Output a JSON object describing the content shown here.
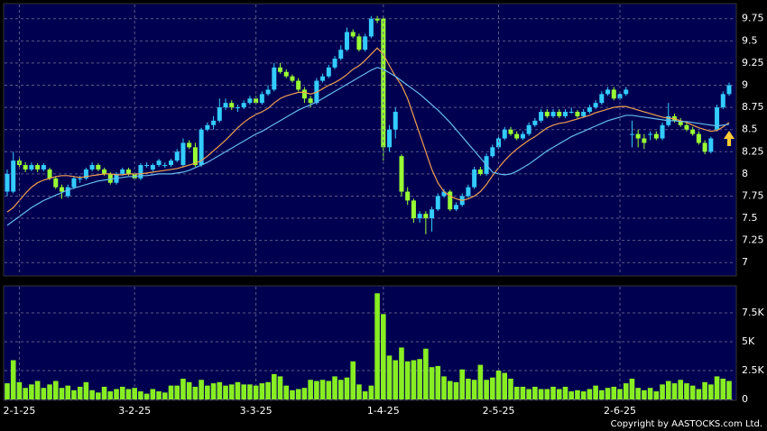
{
  "chart_data": [
    {
      "type": "candlestick",
      "up_color": "#33ccff",
      "down_color": "#99ff33",
      "grid": true,
      "ylim": [
        6.86,
        9.91
      ],
      "yticks": [
        7,
        7.25,
        7.5,
        7.75,
        8,
        8.25,
        8.5,
        8.75,
        9,
        9.25,
        9.5,
        9.75
      ],
      "candles": [
        [
          7.8,
          8.05,
          7.75,
          8.0
        ],
        [
          7.8,
          8.25,
          7.78,
          8.15
        ],
        [
          8.15,
          8.2,
          8.08,
          8.1
        ],
        [
          8.1,
          8.13,
          8.02,
          8.05
        ],
        [
          8.05,
          8.13,
          8.03,
          8.1
        ],
        [
          8.1,
          8.12,
          8.02,
          8.05
        ],
        [
          8.05,
          8.12,
          8.03,
          8.1
        ],
        [
          8.05,
          8.07,
          7.93,
          7.95
        ],
        [
          7.95,
          7.97,
          7.83,
          7.85
        ],
        [
          7.85,
          7.88,
          7.72,
          7.8
        ],
        [
          7.75,
          7.88,
          7.73,
          7.85
        ],
        [
          7.85,
          7.97,
          7.83,
          7.95
        ],
        [
          7.95,
          7.98,
          7.9,
          7.95
        ],
        [
          7.95,
          8.07,
          7.93,
          8.05
        ],
        [
          8.05,
          8.13,
          8.03,
          8.1
        ],
        [
          8.1,
          8.12,
          8.03,
          8.05
        ],
        [
          8.05,
          8.07,
          7.98,
          8.0
        ],
        [
          8.0,
          8.02,
          7.88,
          7.9
        ],
        [
          7.9,
          8.02,
          7.88,
          8.0
        ],
        [
          8.0,
          8.07,
          7.98,
          8.05
        ],
        [
          8.05,
          8.07,
          7.98,
          8.0
        ],
        [
          8.0,
          8.02,
          7.93,
          7.95
        ],
        [
          7.95,
          8.12,
          7.93,
          8.1
        ],
        [
          8.1,
          8.13,
          8.07,
          8.1
        ],
        [
          8.05,
          8.12,
          8.03,
          8.1
        ],
        [
          8.1,
          8.17,
          8.08,
          8.15
        ],
        [
          8.1,
          8.13,
          8.07,
          8.1
        ],
        [
          8.1,
          8.17,
          8.08,
          8.15
        ],
        [
          8.15,
          8.28,
          8.13,
          8.25
        ],
        [
          8.1,
          8.4,
          8.08,
          8.35
        ],
        [
          8.35,
          8.38,
          8.28,
          8.3
        ],
        [
          8.3,
          8.35,
          8.08,
          8.1
        ],
        [
          8.1,
          8.52,
          8.08,
          8.5
        ],
        [
          8.5,
          8.58,
          8.48,
          8.55
        ],
        [
          8.55,
          8.65,
          8.5,
          8.6
        ],
        [
          8.6,
          8.85,
          8.58,
          8.75
        ],
        [
          8.75,
          8.85,
          8.72,
          8.8
        ],
        [
          8.8,
          8.83,
          8.72,
          8.75
        ],
        [
          8.75,
          8.78,
          8.7,
          8.75
        ],
        [
          8.75,
          8.83,
          8.73,
          8.8
        ],
        [
          8.8,
          8.88,
          8.78,
          8.85
        ],
        [
          8.85,
          8.88,
          8.78,
          8.8
        ],
        [
          8.8,
          8.93,
          8.78,
          8.9
        ],
        [
          8.9,
          9.0,
          8.88,
          8.95
        ],
        [
          8.95,
          9.25,
          8.93,
          9.2
        ],
        [
          9.2,
          9.25,
          9.13,
          9.15
        ],
        [
          9.15,
          9.18,
          9.08,
          9.1
        ],
        [
          9.1,
          9.12,
          9.03,
          9.05
        ],
        [
          9.05,
          9.08,
          8.93,
          8.95
        ],
        [
          8.95,
          8.98,
          8.8,
          8.85
        ],
        [
          8.85,
          8.88,
          8.75,
          8.8
        ],
        [
          8.8,
          9.08,
          8.78,
          9.05
        ],
        [
          9.05,
          9.13,
          9.03,
          9.1
        ],
        [
          9.1,
          9.23,
          9.08,
          9.2
        ],
        [
          9.2,
          9.33,
          9.18,
          9.3
        ],
        [
          9.3,
          9.45,
          9.28,
          9.4
        ],
        [
          9.4,
          9.65,
          9.38,
          9.6
        ],
        [
          9.6,
          9.63,
          9.53,
          9.55
        ],
        [
          9.55,
          9.58,
          9.38,
          9.4
        ],
        [
          9.4,
          9.58,
          9.38,
          9.55
        ],
        [
          9.55,
          9.78,
          9.53,
          9.75
        ],
        [
          9.75,
          9.78,
          9.7,
          9.73
        ],
        [
          9.75,
          9.78,
          8.15,
          8.3
        ],
        [
          8.3,
          8.55,
          8.25,
          8.5
        ],
        [
          8.5,
          8.75,
          8.4,
          8.7
        ],
        [
          8.2,
          8.22,
          7.75,
          7.8
        ],
        [
          7.8,
          7.85,
          7.65,
          7.7
        ],
        [
          7.7,
          7.72,
          7.45,
          7.5
        ],
        [
          7.5,
          7.58,
          7.45,
          7.55
        ],
        [
          7.55,
          7.58,
          7.32,
          7.5
        ],
        [
          7.5,
          7.63,
          7.35,
          7.6
        ],
        [
          7.6,
          7.78,
          7.58,
          7.75
        ],
        [
          7.75,
          7.83,
          7.73,
          7.8
        ],
        [
          7.8,
          7.82,
          7.58,
          7.6
        ],
        [
          7.6,
          7.68,
          7.58,
          7.65
        ],
        [
          7.65,
          7.78,
          7.63,
          7.75
        ],
        [
          7.75,
          7.88,
          7.73,
          7.85
        ],
        [
          7.85,
          8.08,
          7.83,
          8.05
        ],
        [
          8.05,
          8.08,
          7.98,
          8.0
        ],
        [
          8.0,
          8.23,
          7.98,
          8.2
        ],
        [
          8.2,
          8.33,
          8.18,
          8.3
        ],
        [
          8.3,
          8.43,
          8.28,
          8.4
        ],
        [
          8.4,
          8.53,
          8.38,
          8.5
        ],
        [
          8.5,
          8.53,
          8.43,
          8.45
        ],
        [
          8.45,
          8.48,
          8.38,
          8.4
        ],
        [
          8.4,
          8.48,
          8.38,
          8.45
        ],
        [
          8.45,
          8.58,
          8.43,
          8.55
        ],
        [
          8.55,
          8.63,
          8.53,
          8.6
        ],
        [
          8.6,
          8.73,
          8.58,
          8.7
        ],
        [
          8.7,
          8.73,
          8.63,
          8.65
        ],
        [
          8.65,
          8.73,
          8.63,
          8.7
        ],
        [
          8.7,
          8.73,
          8.63,
          8.65
        ],
        [
          8.65,
          8.73,
          8.63,
          8.7
        ],
        [
          8.7,
          8.75,
          8.68,
          8.7
        ],
        [
          8.7,
          8.72,
          8.63,
          8.65
        ],
        [
          8.65,
          8.73,
          8.63,
          8.7
        ],
        [
          8.7,
          8.78,
          8.68,
          8.75
        ],
        [
          8.75,
          8.83,
          8.73,
          8.8
        ],
        [
          8.8,
          8.93,
          8.78,
          8.9
        ],
        [
          8.9,
          8.98,
          8.88,
          8.95
        ],
        [
          8.95,
          8.98,
          8.83,
          8.85
        ],
        [
          8.85,
          8.93,
          8.83,
          8.9
        ],
        [
          8.9,
          8.98,
          8.88,
          8.95
        ],
        [
          8.45,
          8.6,
          8.3,
          8.45
        ],
        [
          8.45,
          8.5,
          8.3,
          8.4
        ],
        [
          8.4,
          8.45,
          8.28,
          8.35
        ],
        [
          8.45,
          8.48,
          8.38,
          8.45
        ],
        [
          8.45,
          8.48,
          8.38,
          8.4
        ],
        [
          8.4,
          8.58,
          8.38,
          8.55
        ],
        [
          8.55,
          8.8,
          8.53,
          8.65
        ],
        [
          8.65,
          8.68,
          8.58,
          8.6
        ],
        [
          8.6,
          8.63,
          8.53,
          8.55
        ],
        [
          8.55,
          8.58,
          8.48,
          8.5
        ],
        [
          8.5,
          8.53,
          8.43,
          8.45
        ],
        [
          8.45,
          8.48,
          8.33,
          8.35
        ],
        [
          8.35,
          8.38,
          8.22,
          8.25
        ],
        [
          8.25,
          8.42,
          8.23,
          8.4
        ],
        [
          8.5,
          8.78,
          8.48,
          8.75
        ],
        [
          8.75,
          8.93,
          8.73,
          8.9
        ],
        [
          8.9,
          9.03,
          8.88,
          9.0
        ]
      ],
      "series": [
        {
          "color": "#f0a050",
          "values": [
            7.57,
            7.62,
            7.7,
            7.78,
            7.85,
            7.9,
            7.93,
            7.95,
            7.97,
            7.98,
            7.98,
            7.97,
            7.96,
            7.97,
            7.98,
            7.99,
            8.0,
            8.0,
            7.99,
            7.99,
            8.0,
            8.0,
            8.0,
            8.01,
            8.02,
            8.03,
            8.04,
            8.05,
            8.06,
            8.08,
            8.1,
            8.12,
            8.15,
            8.2,
            8.26,
            8.32,
            8.38,
            8.45,
            8.52,
            8.58,
            8.63,
            8.67,
            8.7,
            8.74,
            8.8,
            8.85,
            8.88,
            8.9,
            8.92,
            8.92,
            8.9,
            8.92,
            8.96,
            9.0,
            9.03,
            9.07,
            9.12,
            9.18,
            9.22,
            9.28,
            9.35,
            9.42,
            9.35,
            9.22,
            9.1,
            9.0,
            8.85,
            8.65,
            8.45,
            8.25,
            8.05,
            7.9,
            7.8,
            7.75,
            7.72,
            7.7,
            7.72,
            7.75,
            7.8,
            7.88,
            7.98,
            8.07,
            8.15,
            8.22,
            8.28,
            8.33,
            8.38,
            8.42,
            8.47,
            8.52,
            8.55,
            8.57,
            8.58,
            8.6,
            8.62,
            8.64,
            8.66,
            8.69,
            8.71,
            8.73,
            8.75,
            8.76,
            8.76,
            8.74,
            8.72,
            8.7,
            8.68,
            8.66,
            8.64,
            8.63,
            8.62,
            8.6,
            8.58,
            8.55,
            8.52,
            8.5,
            8.48,
            8.49,
            8.53,
            8.58
          ]
        },
        {
          "color": "#66bbee",
          "values": [
            7.42,
            7.47,
            7.52,
            7.57,
            7.62,
            7.66,
            7.7,
            7.73,
            7.76,
            7.79,
            7.82,
            7.84,
            7.86,
            7.88,
            7.9,
            7.92,
            7.93,
            7.94,
            7.95,
            7.96,
            7.97,
            7.97,
            7.98,
            7.98,
            7.99,
            8.0,
            8.0,
            8.0,
            8.01,
            8.02,
            8.04,
            8.07,
            8.1,
            8.13,
            8.17,
            8.21,
            8.25,
            8.29,
            8.33,
            8.37,
            8.41,
            8.45,
            8.48,
            8.52,
            8.56,
            8.6,
            8.64,
            8.68,
            8.72,
            8.75,
            8.78,
            8.81,
            8.85,
            8.89,
            8.93,
            8.97,
            9.01,
            9.05,
            9.09,
            9.13,
            9.17,
            9.2,
            9.18,
            9.14,
            9.1,
            9.05,
            9.0,
            8.95,
            8.9,
            8.84,
            8.78,
            8.72,
            8.65,
            8.58,
            8.5,
            8.42,
            8.34,
            8.26,
            8.18,
            8.1,
            8.02,
            8.0,
            7.99,
            8.0,
            8.03,
            8.07,
            8.11,
            8.16,
            8.21,
            8.26,
            8.3,
            8.34,
            8.38,
            8.42,
            8.45,
            8.48,
            8.51,
            8.54,
            8.57,
            8.6,
            8.62,
            8.64,
            8.66,
            8.66,
            8.65,
            8.64,
            8.63,
            8.62,
            8.61,
            8.6,
            8.6,
            8.59,
            8.59,
            8.58,
            8.57,
            8.56,
            8.55,
            8.54,
            8.55,
            8.56
          ]
        }
      ]
    },
    {
      "type": "bar",
      "color": "#88ee22",
      "grid": true,
      "ylim": [
        0,
        9770
      ],
      "yticks": [
        0,
        {
          "value": 2500,
          "label": "2.5K"
        },
        {
          "value": 5000,
          "label": "5K"
        },
        {
          "value": 7500,
          "label": "7.5K"
        }
      ],
      "categories": [
        null,
        null,
        "2-1-25",
        null,
        null,
        null,
        null,
        null,
        null,
        null,
        null,
        null,
        null,
        null,
        null,
        null,
        null,
        null,
        null,
        null,
        null,
        "3-2-25",
        null,
        null,
        null,
        null,
        null,
        null,
        null,
        null,
        null,
        null,
        null,
        null,
        null,
        null,
        null,
        null,
        null,
        null,
        null,
        "3-3-25",
        null,
        null,
        null,
        null,
        null,
        null,
        null,
        null,
        null,
        null,
        null,
        null,
        null,
        null,
        null,
        null,
        null,
        null,
        null,
        null,
        "1-4-25",
        null,
        null,
        null,
        null,
        null,
        null,
        null,
        null,
        null,
        null,
        null,
        null,
        null,
        null,
        null,
        null,
        null,
        null,
        "2-5-25",
        null,
        null,
        null,
        null,
        null,
        null,
        null,
        null,
        null,
        null,
        null,
        null,
        null,
        null,
        null,
        null,
        null,
        null,
        null,
        "2-6-25",
        null,
        null,
        null,
        null,
        null,
        null,
        null,
        null,
        null,
        null,
        null,
        null,
        null,
        null,
        null,
        null,
        null,
        null
      ],
      "values": [
        1400,
        3400,
        1500,
        1000,
        1300,
        1600,
        1000,
        1300,
        1600,
        1000,
        1200,
        800,
        1100,
        1500,
        800,
        600,
        1100,
        700,
        900,
        1100,
        900,
        1000,
        700,
        500,
        900,
        700,
        600,
        1200,
        1200,
        1800,
        1500,
        1100,
        1700,
        1200,
        1400,
        1500,
        1200,
        1300,
        1500,
        1300,
        1300,
        1200,
        1400,
        1500,
        2200,
        2000,
        1200,
        800,
        900,
        1000,
        1700,
        1600,
        1700,
        1600,
        2000,
        1700,
        1900,
        3300,
        1300,
        700,
        1200,
        9200,
        7400,
        3800,
        3400,
        4500,
        3300,
        3400,
        3500,
        4400,
        2800,
        2900,
        2000,
        1600,
        1500,
        2600,
        1800,
        1700,
        3000,
        1700,
        1900,
        2500,
        2300,
        1800,
        1100,
        1100,
        900,
        1100,
        900,
        900,
        1100,
        900,
        1100,
        700,
        800,
        700,
        900,
        1200,
        800,
        1000,
        1100,
        900,
        1400,
        1800,
        1000,
        800,
        1000,
        700,
        1300,
        1600,
        1400,
        1700,
        1400,
        1200,
        900,
        1500,
        1300,
        2000,
        1800,
        1600
      ]
    }
  ],
  "copyright": "Copyright by AASTOCKS.com Ltd."
}
